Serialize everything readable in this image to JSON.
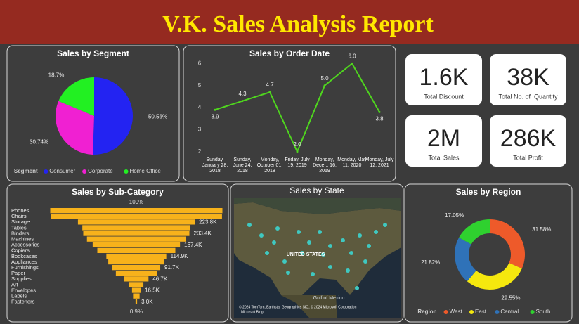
{
  "header": {
    "title": "V.K. Sales Analysis Report"
  },
  "chart_data": [
    {
      "type": "pie",
      "title": "Sales by Segment",
      "legend_title": "Segment",
      "categories": [
        "Consumer",
        "Corporate",
        "Home Office"
      ],
      "values": [
        50.56,
        30.74,
        18.7
      ],
      "value_labels": [
        "50.56%",
        "30.74%",
        "18.7%"
      ],
      "colors": [
        "#2323f2",
        "#f020d2",
        "#22f022"
      ]
    },
    {
      "type": "line",
      "title": "Sales by Order Date",
      "categories": [
        "Sunday, January 28, 2018",
        "Sunday, June 24, 2018",
        "Monday, October 01, 2018",
        "Friday, July 19, 2019",
        "Monday, Dece... 16, 2019",
        "Monday, May 11, 2020",
        "Monday, July 12, 2021"
      ],
      "values": [
        3.9,
        4.3,
        4.7,
        2.0,
        5.0,
        6.0,
        3.8
      ],
      "value_labels": [
        "3.9",
        "4.3",
        "4.7",
        "2.0",
        "5.0",
        "6.0",
        "3.8"
      ],
      "ylim": [
        1.8,
        6.3
      ],
      "yticks": [
        2,
        3,
        4,
        5,
        6
      ],
      "color": "#4fd61e"
    },
    {
      "type": "funnel",
      "title": "Sales by Sub-Category",
      "color": "#f7b21b",
      "top_label": "100%",
      "bottom_label": "0.9%",
      "categories": [
        "Phones",
        "Chairs",
        "Storage",
        "Tables",
        "Binders",
        "Machines",
        "Accessories",
        "Copiers",
        "Bookcases",
        "Appliances",
        "Furnishings",
        "Paper",
        "Supplies",
        "Art",
        "Envelopes",
        "Labels",
        "Fasteners"
      ],
      "values": [
        330007,
        328449,
        223844,
        206966,
        203413,
        189239,
        167380,
        149528,
        114880,
        107532,
        91705,
        78479,
        46674,
        27119,
        16476,
        12486,
        3024
      ],
      "value_labels": [
        null,
        null,
        "223.8K",
        null,
        "203.4K",
        null,
        "167.4K",
        null,
        "114.9K",
        null,
        "91.7K",
        null,
        "46.7K",
        null,
        "16.5K",
        null,
        "3.0K"
      ]
    },
    {
      "type": "donut",
      "title": "Sales by Region",
      "legend_title": "Region",
      "categories": [
        "West",
        "East",
        "Central",
        "South"
      ],
      "values": [
        31.58,
        29.55,
        21.82,
        17.05
      ],
      "value_labels": [
        "31.58%",
        "29.55%",
        "21.82%",
        "17.05%"
      ],
      "colors": [
        "#ee5a2a",
        "#f5e80e",
        "#2f72b8",
        "#2fd12f"
      ]
    }
  ],
  "kpis": [
    {
      "value": "1.6K",
      "label": "Total Discount"
    },
    {
      "value": "38K",
      "label": "Total No. of  Quantity"
    },
    {
      "value": "2M",
      "label": "Total Sales"
    },
    {
      "value": "286K",
      "label": "Total Profit"
    }
  ],
  "map": {
    "title": "Sales by State",
    "country": "UNITED STATES",
    "sea": "Gulf of Mexico",
    "credit": "© 2024 TomTom, Earthstar Geographics SIO, © 2024 Microsoft Corporation",
    "brand": "Microsoft Bing"
  }
}
